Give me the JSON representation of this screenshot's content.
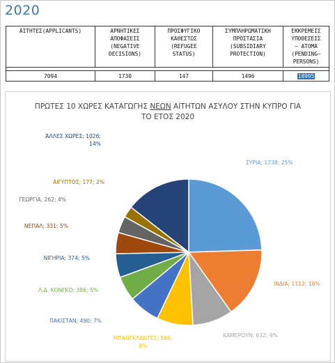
{
  "heading": "2020",
  "table": {
    "headers": [
      "ΑΙΤΗΤΕΣ(APPLICANTS)",
      "ΑΡΝΗΤΙΚΕΣ\nΑΠΟΦΑΣΕΙΣ\n(NEGATIVE\nDECISIONS)",
      "ΠΡΟΣΦΥΓΙΚΟ\nΚΑΘΕΣΤΩΣ\n(REFUGEE\nSTATUS)",
      "ΣΥΜΠΛΗΡΩΜΑΤΙΚΗ\nΠΡΟΣΤΑΣΙΑ\n(SUBSIDIARY\nPROTECTION)",
      "ΕΚΚΡΕΜΕΙΣ\nΥΠΟΘΕΣΕΙΣ\n– ΑΤΟΜΑ\n(PENDING–\nPERSONS)"
    ],
    "values": [
      "7094",
      "1730",
      "147",
      "1496",
      "18995"
    ]
  },
  "chart_data": {
    "type": "pie",
    "title_before": "ΠΡΩΤΕΣ 10 ΧΩΡΕΣ ΚΑΤΑΓΩΓΗΣ ",
    "title_underlined": "ΝΕΩΝ",
    "title_after": " ΑΙΤΗΤΩΝ ΑΣΥΛΟΥ ΣΤΗΝ ΚΥΠΡΟ ΓΙΑ",
    "title_line2": "ΤΟ ΕΤΟΣ 2020",
    "slices": [
      {
        "label": "ΣΥΡΙΑ; 1738; 25%",
        "value": 1738,
        "color": "#5b9bd5"
      },
      {
        "label": "ΙΝΔΙΑ; 1112; 16%",
        "value": 1112,
        "color": "#ed7d31"
      },
      {
        "label": "ΚΑΜΕΡΟΥΝ; 632; 9%",
        "value": 632,
        "color": "#a5a5a5"
      },
      {
        "label": "ΜΠΑΝΓΚΛΑΝΤΕΣ; 566;\n8%",
        "value": 566,
        "color": "#ffc000"
      },
      {
        "label": "ΠΑΚΙΣΤΑΝ; 490; 7%",
        "value": 490,
        "color": "#4472c4"
      },
      {
        "label": "Λ.Δ. ΚΟΝΓΚΟ; 386; 5%",
        "value": 386,
        "color": "#70ad47"
      },
      {
        "label": "ΝΙΓΗΡΙΑ; 374; 5%",
        "value": 374,
        "color": "#255e91"
      },
      {
        "label": "ΝΕΠΑΛ; 331; 5%",
        "value": 331,
        "color": "#9e480e"
      },
      {
        "label": "ΓΕΩΡΓΙΑ; 262; 4%",
        "value": 262,
        "color": "#636363"
      },
      {
        "label": "ΑΙΓΥΠΤΟΣ; 177; 2%",
        "value": 177,
        "color": "#997300"
      },
      {
        "label": "ΆΛΛΕΣ ΧΩΡΕΣ; 1026;\n14%",
        "value": 1026,
        "color": "#264478"
      }
    ]
  }
}
